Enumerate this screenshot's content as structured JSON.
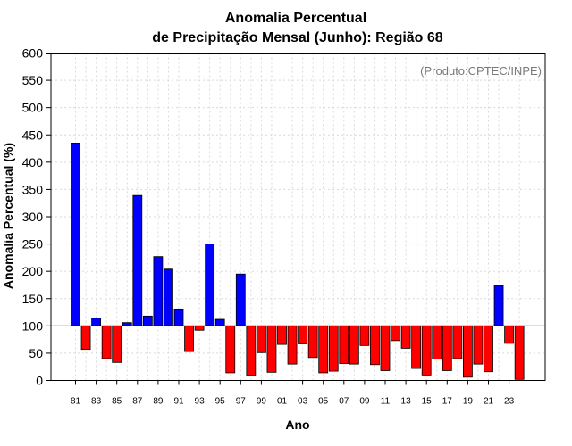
{
  "chart_data": {
    "type": "bar",
    "title_line1": "Anomalia Percentual",
    "title_line2": "de Precipitação Mensal (Junho): Região 68",
    "xlabel": "Ano",
    "ylabel": "Anomalia Percentual (%)",
    "credit": "(Produto:CPTEC/INPE)",
    "ylim": [
      0,
      600
    ],
    "yticks": [
      0,
      50,
      100,
      150,
      200,
      250,
      300,
      350,
      400,
      450,
      500,
      550,
      600
    ],
    "baseline": 100,
    "categories": [
      "81",
      "82",
      "83",
      "84",
      "85",
      "86",
      "87",
      "88",
      "89",
      "90",
      "91",
      "92",
      "93",
      "94",
      "95",
      "96",
      "97",
      "98",
      "99",
      "00",
      "01",
      "02",
      "03",
      "04",
      "05",
      "06",
      "07",
      "08",
      "09",
      "10",
      "11",
      "12",
      "13",
      "14",
      "15",
      "16",
      "17",
      "18",
      "19",
      "20",
      "21",
      "22",
      "23",
      "24"
    ],
    "x_tick_labels": [
      "81",
      "83",
      "85",
      "87",
      "89",
      "91",
      "93",
      "95",
      "97",
      "99",
      "01",
      "03",
      "05",
      "07",
      "09",
      "11",
      "13",
      "15",
      "17",
      "19",
      "21",
      "23"
    ],
    "values": [
      435,
      57,
      114,
      40,
      33,
      106,
      339,
      118,
      227,
      204,
      131,
      53,
      92,
      250,
      112,
      14,
      195,
      9,
      51,
      15,
      66,
      30,
      67,
      42,
      14,
      17,
      31,
      30,
      64,
      29,
      18,
      73,
      59,
      22,
      10,
      39,
      18,
      40,
      6,
      30,
      16,
      174,
      68,
      2
    ],
    "colors": {
      "above": "#0000ff",
      "below": "#ff0000",
      "grid": "#d9d9d9"
    }
  }
}
